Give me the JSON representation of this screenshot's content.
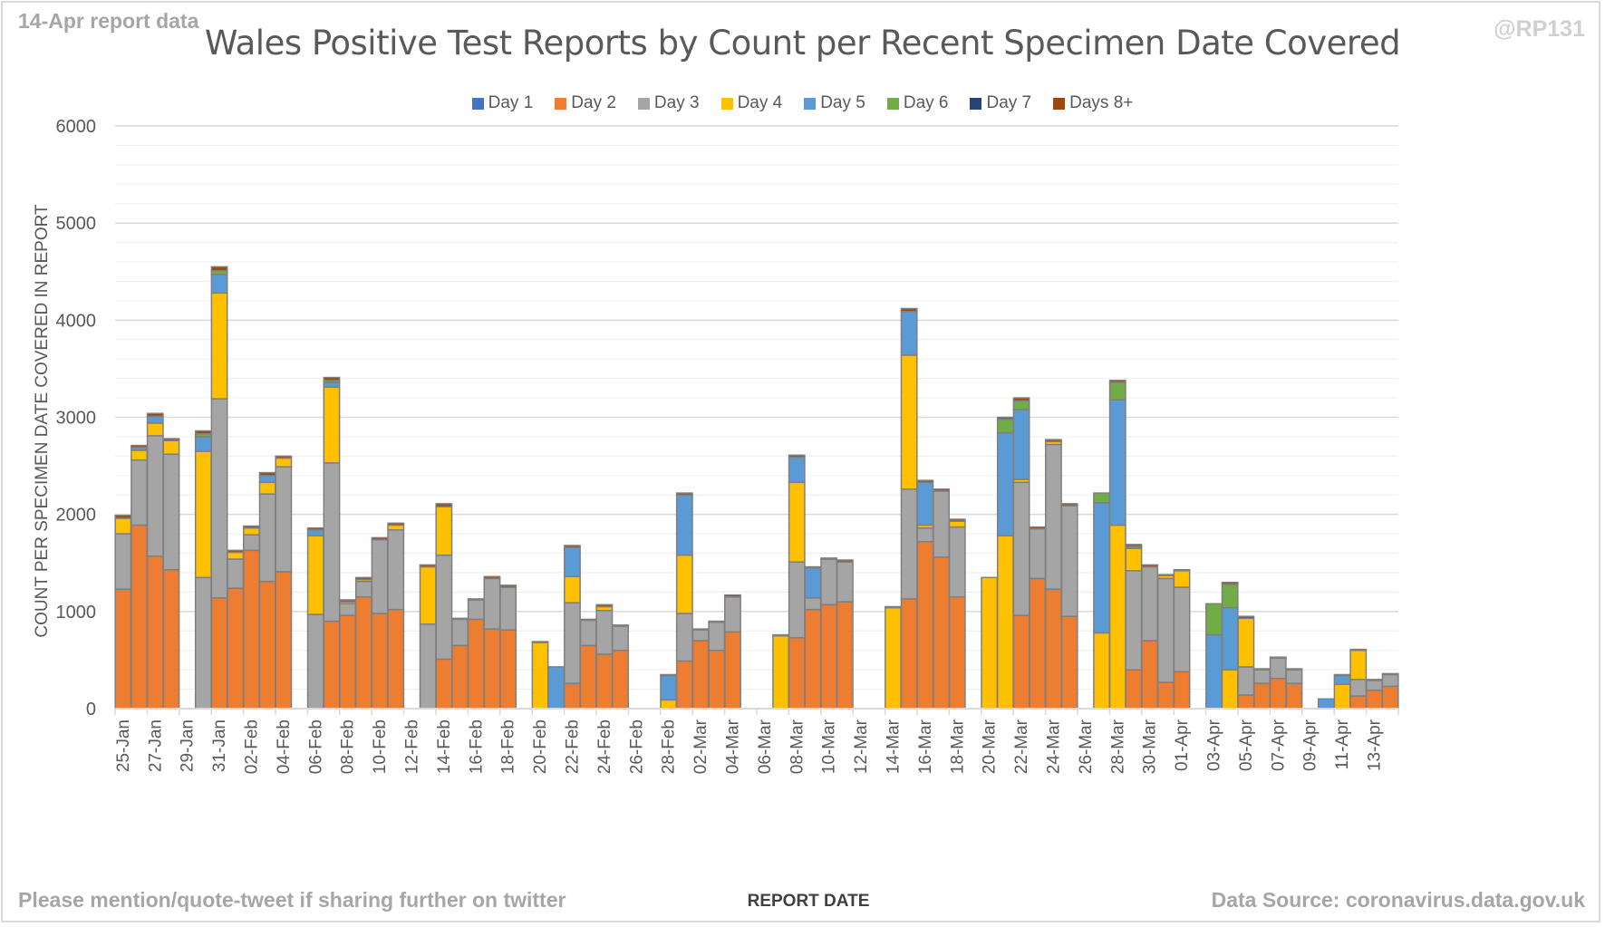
{
  "header": {
    "corner_left": "14-Apr report data",
    "corner_right": "@RP131"
  },
  "footer": {
    "left": "Please mention/quote-tweet if sharing further on twitter",
    "right": "Data Source: coronavirus.data.gov.uk"
  },
  "chart_data": {
    "type": "bar",
    "stacked": true,
    "title": "Wales Positive Test Reports by Count per Recent Specimen Date Covered",
    "xlabel": "REPORT DATE",
    "ylabel": "COUNT PER SPECIMEN DATE COVERED IN REPORT",
    "ylim": [
      0,
      6000
    ],
    "yticks": [
      0,
      1000,
      2000,
      3000,
      4000,
      5000,
      6000
    ],
    "grid": true,
    "legend_position": "top",
    "categories": [
      "25-Jan",
      "26-Jan",
      "27-Jan",
      "28-Jan",
      "29-Jan",
      "30-Jan",
      "31-Jan",
      "01-Feb",
      "02-Feb",
      "03-Feb",
      "04-Feb",
      "05-Feb",
      "06-Feb",
      "07-Feb",
      "08-Feb",
      "09-Feb",
      "10-Feb",
      "11-Feb",
      "12-Feb",
      "13-Feb",
      "14-Feb",
      "15-Feb",
      "16-Feb",
      "17-Feb",
      "18-Feb",
      "19-Feb",
      "20-Feb",
      "21-Feb",
      "22-Feb",
      "23-Feb",
      "24-Feb",
      "25-Feb",
      "26-Feb",
      "27-Feb",
      "28-Feb",
      "01-Mar",
      "02-Mar",
      "03-Mar",
      "04-Mar",
      "05-Mar",
      "06-Mar",
      "07-Mar",
      "08-Mar",
      "09-Mar",
      "10-Mar",
      "11-Mar",
      "12-Mar",
      "13-Mar",
      "14-Mar",
      "15-Mar",
      "16-Mar",
      "17-Mar",
      "18-Mar",
      "19-Mar",
      "20-Mar",
      "21-Mar",
      "22-Mar",
      "23-Mar",
      "24-Mar",
      "25-Mar",
      "26-Mar",
      "27-Mar",
      "28-Mar",
      "29-Mar",
      "30-Mar",
      "31-Mar",
      "01-Apr",
      "02-Apr",
      "03-Apr",
      "04-Apr",
      "05-Apr",
      "06-Apr",
      "07-Apr",
      "08-Apr",
      "09-Apr",
      "10-Apr",
      "11-Apr",
      "12-Apr",
      "13-Apr",
      "14-Apr"
    ],
    "xtick_labels": [
      "25-Jan",
      "27-Jan",
      "29-Jan",
      "31-Jan",
      "02-Feb",
      "04-Feb",
      "06-Feb",
      "08-Feb",
      "10-Feb",
      "12-Feb",
      "14-Feb",
      "16-Feb",
      "18-Feb",
      "20-Feb",
      "22-Feb",
      "24-Feb",
      "26-Feb",
      "28-Feb",
      "02-Mar",
      "04-Mar",
      "06-Mar",
      "08-Mar",
      "10-Mar",
      "12-Mar",
      "14-Mar",
      "16-Mar",
      "18-Mar",
      "20-Mar",
      "22-Mar",
      "24-Mar",
      "26-Mar",
      "28-Mar",
      "30-Mar",
      "01-Apr",
      "03-Apr",
      "05-Apr",
      "07-Apr",
      "09-Apr",
      "11-Apr",
      "13-Apr"
    ],
    "series": [
      {
        "name": "Day 1",
        "color": "#4472c4",
        "values": [
          0,
          0,
          0,
          0,
          0,
          0,
          0,
          0,
          0,
          0,
          0,
          0,
          0,
          0,
          0,
          0,
          0,
          0,
          0,
          0,
          0,
          0,
          0,
          0,
          0,
          0,
          0,
          0,
          0,
          0,
          0,
          0,
          0,
          0,
          0,
          0,
          0,
          0,
          0,
          0,
          0,
          0,
          0,
          0,
          0,
          0,
          0,
          0,
          0,
          0,
          0,
          0,
          0,
          0,
          0,
          0,
          0,
          0,
          0,
          0,
          0,
          0,
          0,
          0,
          0,
          0,
          0,
          0,
          0,
          0,
          0,
          0,
          0,
          0,
          0,
          0,
          0,
          0,
          0,
          0
        ]
      },
      {
        "name": "Day 2",
        "color": "#ed7d31",
        "values": [
          1230,
          1890,
          1570,
          1430,
          0,
          0,
          1140,
          1240,
          1630,
          1310,
          1410,
          0,
          0,
          900,
          960,
          1150,
          980,
          1020,
          0,
          0,
          510,
          650,
          920,
          820,
          810,
          0,
          0,
          0,
          260,
          650,
          560,
          600,
          0,
          0,
          0,
          490,
          700,
          600,
          790,
          0,
          0,
          0,
          730,
          1020,
          1070,
          1100,
          0,
          0,
          0,
          1130,
          1720,
          1560,
          1150,
          0,
          0,
          0,
          960,
          1340,
          1230,
          950,
          0,
          0,
          0,
          400,
          700,
          270,
          380,
          0,
          0,
          0,
          140,
          260,
          310,
          260,
          0,
          0,
          0,
          130,
          190,
          230
        ]
      },
      {
        "name": "Day 3",
        "color": "#a5a5a5",
        "values": [
          570,
          670,
          1240,
          1190,
          0,
          1350,
          2050,
          300,
          160,
          900,
          1080,
          0,
          970,
          1630,
          120,
          160,
          760,
          820,
          0,
          870,
          1070,
          270,
          200,
          520,
          440,
          0,
          0,
          0,
          830,
          260,
          450,
          250,
          0,
          0,
          0,
          490,
          110,
          290,
          360,
          0,
          0,
          0,
          780,
          120,
          470,
          410,
          0,
          0,
          0,
          1130,
          140,
          680,
          720,
          0,
          0,
          0,
          1370,
          510,
          1490,
          1140,
          0,
          0,
          0,
          1020,
          760,
          1070,
          870,
          0,
          0,
          0,
          290,
          140,
          210,
          140,
          0,
          0,
          0,
          170,
          100,
          120
        ]
      },
      {
        "name": "Day 4",
        "color": "#ffc000",
        "values": [
          160,
          100,
          130,
          140,
          0,
          1300,
          1090,
          70,
          70,
          120,
          90,
          0,
          810,
          780,
          20,
          20,
          0,
          50,
          0,
          590,
          500,
          0,
          0,
          0,
          0,
          0,
          680,
          0,
          270,
          0,
          40,
          0,
          0,
          0,
          90,
          600,
          0,
          0,
          0,
          0,
          0,
          750,
          820,
          0,
          0,
          0,
          0,
          0,
          1040,
          1380,
          30,
          0,
          60,
          0,
          1350,
          1780,
          30,
          0,
          30,
          0,
          0,
          780,
          1890,
          230,
          0,
          30,
          170,
          0,
          0,
          400,
          500,
          0,
          0,
          0,
          0,
          0,
          250,
          300,
          0,
          0
        ]
      },
      {
        "name": "Day 5",
        "color": "#5b9bd5",
        "values": [
          0,
          30,
          70,
          0,
          0,
          150,
          190,
          0,
          0,
          70,
          0,
          0,
          60,
          50,
          0,
          0,
          0,
          0,
          0,
          0,
          0,
          0,
          0,
          0,
          0,
          0,
          0,
          430,
          300,
          0,
          0,
          0,
          0,
          0,
          250,
          620,
          0,
          0,
          0,
          0,
          0,
          0,
          260,
          310,
          0,
          0,
          0,
          0,
          0,
          450,
          440,
          0,
          0,
          0,
          0,
          1060,
          720,
          0,
          0,
          0,
          0,
          1340,
          1290,
          20,
          0,
          0,
          0,
          0,
          760,
          640,
          0,
          0,
          0,
          0,
          0,
          100,
          90,
          0,
          0,
          0
        ]
      },
      {
        "name": "Day 6",
        "color": "#70ad47",
        "values": [
          0,
          0,
          0,
          0,
          0,
          30,
          40,
          0,
          0,
          0,
          0,
          0,
          0,
          20,
          0,
          0,
          0,
          0,
          0,
          0,
          0,
          0,
          0,
          0,
          0,
          0,
          0,
          0,
          0,
          0,
          0,
          0,
          0,
          0,
          0,
          0,
          0,
          0,
          0,
          0,
          0,
          0,
          0,
          0,
          0,
          0,
          0,
          0,
          0,
          0,
          0,
          0,
          0,
          0,
          0,
          140,
          90,
          0,
          0,
          0,
          0,
          100,
          180,
          0,
          0,
          0,
          0,
          0,
          320,
          240,
          0,
          0,
          0,
          0,
          0,
          0,
          0,
          0,
          0,
          0
        ]
      },
      {
        "name": "Day 7",
        "color": "#264478",
        "values": [
          0,
          0,
          0,
          0,
          0,
          0,
          0,
          0,
          0,
          0,
          0,
          0,
          0,
          0,
          0,
          0,
          0,
          0,
          0,
          0,
          0,
          0,
          0,
          0,
          0,
          0,
          0,
          0,
          0,
          0,
          0,
          0,
          0,
          0,
          0,
          0,
          0,
          0,
          0,
          0,
          0,
          0,
          0,
          0,
          0,
          0,
          0,
          0,
          0,
          0,
          0,
          0,
          0,
          0,
          0,
          0,
          0,
          0,
          0,
          0,
          0,
          0,
          0,
          0,
          0,
          0,
          0,
          0,
          0,
          0,
          0,
          0,
          0,
          0,
          0,
          0,
          0,
          0,
          0,
          0
        ]
      },
      {
        "name": "Days 8+",
        "color": "#9e480e",
        "values": [
          30,
          20,
          30,
          20,
          0,
          30,
          40,
          20,
          20,
          30,
          20,
          0,
          20,
          30,
          20,
          20,
          20,
          20,
          0,
          20,
          30,
          10,
          10,
          20,
          20,
          0,
          10,
          0,
          20,
          10,
          20,
          10,
          0,
          0,
          10,
          20,
          10,
          10,
          20,
          0,
          0,
          10,
          20,
          10,
          10,
          20,
          0,
          0,
          10,
          30,
          20,
          20,
          20,
          0,
          0,
          20,
          30,
          20,
          20,
          20,
          0,
          0,
          20,
          20,
          20,
          10,
          10,
          0,
          0,
          20,
          20,
          10,
          10,
          10,
          0,
          0,
          10,
          10,
          10,
          10
        ]
      }
    ]
  }
}
